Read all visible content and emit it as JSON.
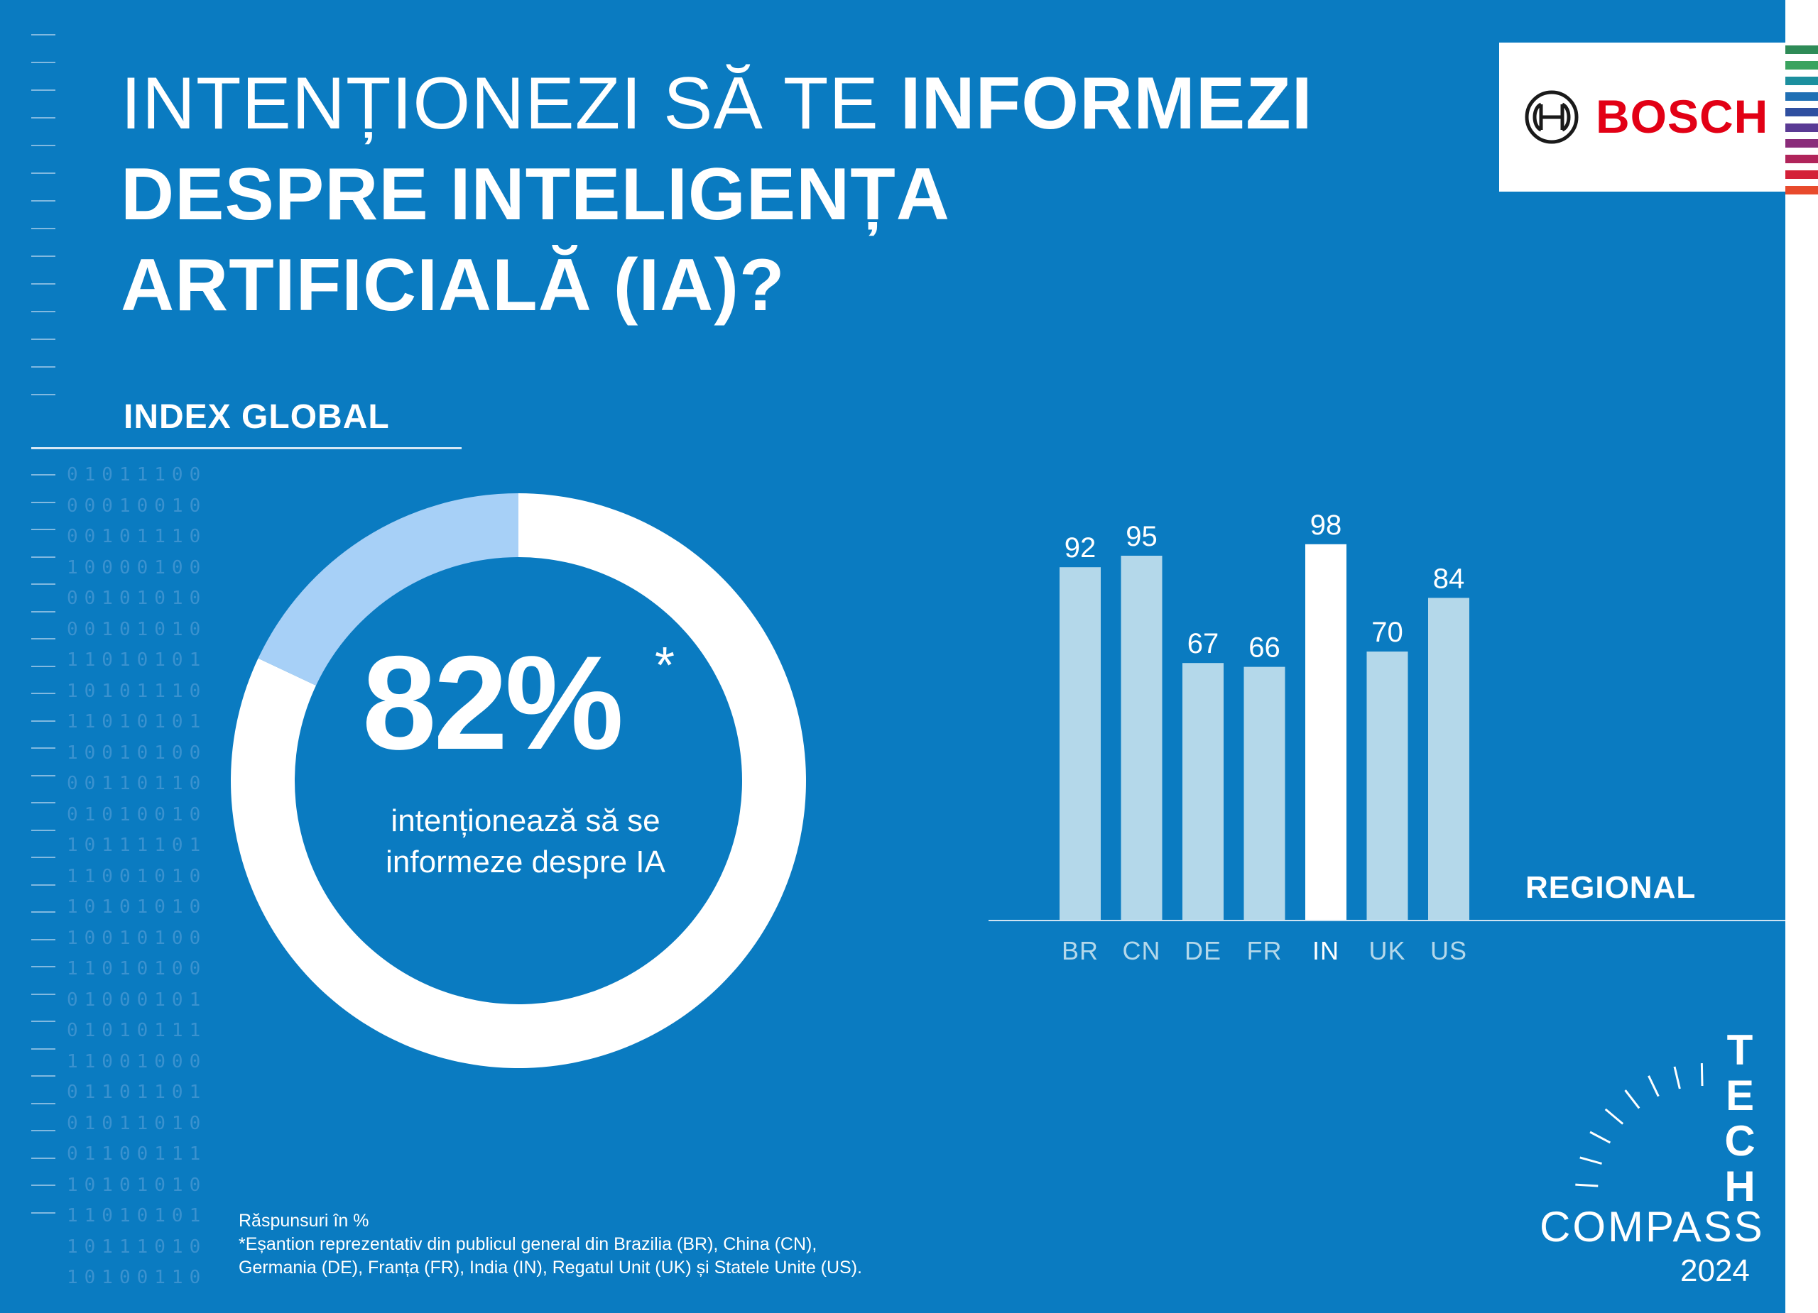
{
  "title": {
    "light": "INTENȚIONEZI SĂ TE ",
    "bold_inline": "INFORMEZI",
    "line2": "DESPRE INTELIGENȚA",
    "line3": "ARTIFICIALĂ (IA)?"
  },
  "brand": {
    "logo_text": "BOSCH",
    "logo_icon": "bosch-armature-icon",
    "brand_color": "#e20015"
  },
  "colors": {
    "background": "#0a7bc1",
    "bar": "#b4d8ea",
    "bar_highlight": "#ffffff",
    "donut_remainder": "#a7d0f7",
    "donut_main": "#ffffff"
  },
  "index_section": {
    "label": "INDEX GLOBAL"
  },
  "global_index": {
    "value_text": "82%",
    "asterisk": "*",
    "caption_line1": "intenționează să se",
    "caption_line2": "informeze despre IA"
  },
  "regional_section": {
    "label": "REGIONAL"
  },
  "chart_data": [
    {
      "type": "pie",
      "title": "INDEX GLOBAL",
      "categories": [
        "intenționează să se informeze despre IA",
        ""
      ],
      "values": [
        82,
        18
      ],
      "colors": [
        "#ffffff",
        "#a7d0f7"
      ]
    },
    {
      "type": "bar",
      "title": "REGIONAL",
      "categories": [
        "BR",
        "CN",
        "DE",
        "FR",
        "IN",
        "UK",
        "US"
      ],
      "values": [
        92,
        95,
        67,
        66,
        98,
        70,
        84
      ],
      "highlight": "IN",
      "ylim": [
        0,
        100
      ],
      "grid": false,
      "xlabel": "",
      "ylabel": ""
    }
  ],
  "footnote": {
    "line1": "Răspunsuri în %",
    "line2": "*Eșantion reprezentativ din publicul general din Brazilia (BR), China (CN),",
    "line3": "Germania (DE), Franța (FR), India (IN), Regatul Unit (UK) și Statele Unite (US)."
  },
  "tech_compass": {
    "letters": [
      "T",
      "E",
      "C",
      "H"
    ],
    "word": "COMPASS",
    "year": "2024"
  },
  "decoration": {
    "binary_rows": [
      "01011100",
      "00010010",
      "00101110",
      "10000100",
      "00101010",
      "00101010",
      "11010101",
      "10101110",
      "11010101",
      "10010100",
      "00110110",
      "01010010",
      "10111101",
      "11001010",
      "10101010",
      "10010100",
      "11010100",
      "01000101",
      "01010111",
      "11001000",
      "01101101",
      "01011010",
      "01100111",
      "10101010",
      "11010101",
      "10111010",
      "10100110"
    ]
  }
}
